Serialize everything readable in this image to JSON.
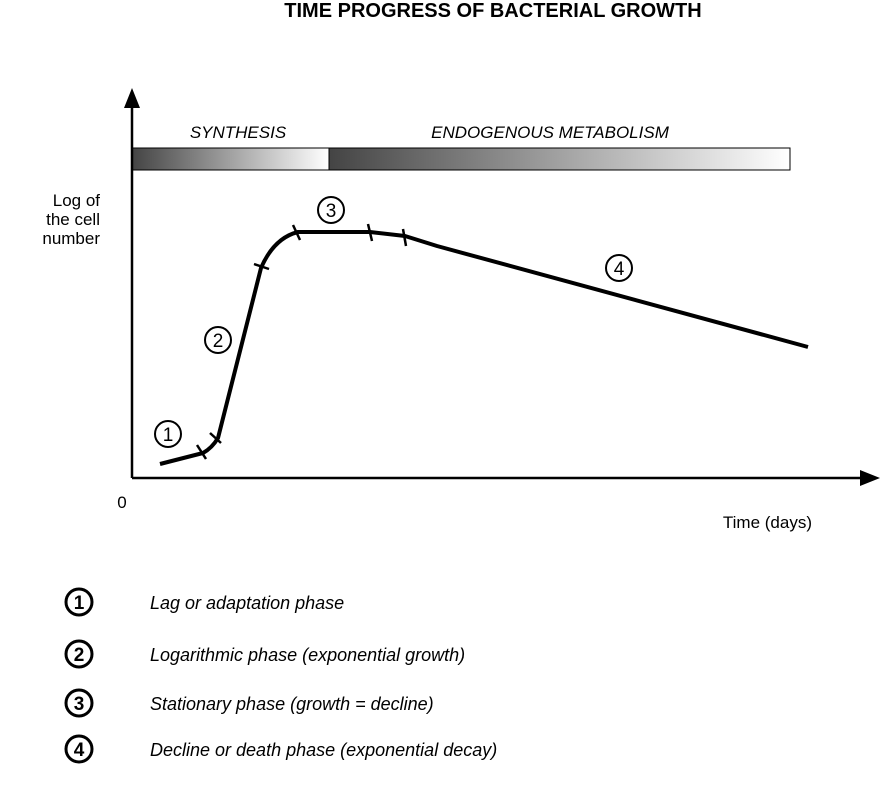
{
  "title": "TIME PROGRESS OF BACTERIAL GROWTH",
  "bands": [
    {
      "label": "SYNTHESIS"
    },
    {
      "label": "ENDOGENOUS METABOLISM"
    }
  ],
  "y_axis_label": [
    "Log of",
    "the cell",
    "number"
  ],
  "origin_label": "0",
  "x_axis_label": "Time (days)",
  "phase_markers": [
    "1",
    "2",
    "3",
    "4"
  ],
  "legend": [
    {
      "marker": "1",
      "text": "Lag or adaptation phase"
    },
    {
      "marker": "2",
      "text": "Logarithmic phase (exponential growth)"
    },
    {
      "marker": "3",
      "text": "Stationary phase (growth = decline)"
    },
    {
      "marker": "4",
      "text": "Decline or death phase (exponential decay)"
    }
  ],
  "colors": {
    "line": "#000000",
    "band_dark": "#444444",
    "band_light": "#ffffff"
  }
}
